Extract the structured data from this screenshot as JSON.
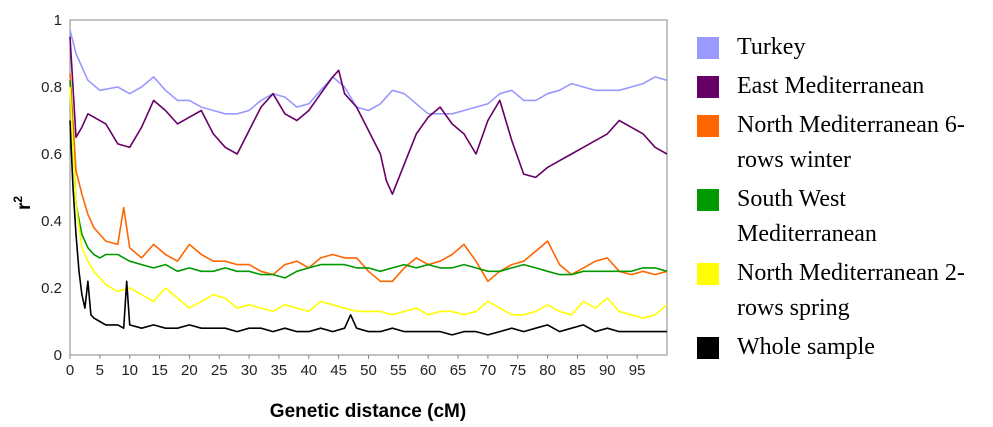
{
  "chart_data": {
    "type": "line",
    "title": "",
    "xlabel": "Genetic distance (cM)",
    "ylabel": "r²",
    "ylabel_main": "r",
    "ylabel_sup": "2",
    "xlim": [
      0,
      100
    ],
    "ylim": [
      0,
      1
    ],
    "xticks": [
      "0",
      "5",
      "10",
      "15",
      "20",
      "25",
      "30",
      "35",
      "40",
      "45",
      "50",
      "55",
      "60",
      "65",
      "70",
      "75",
      "80",
      "85",
      "90",
      "95"
    ],
    "yticks": [
      "0",
      "0.2",
      "0.4",
      "0.6",
      "0.8",
      "1"
    ],
    "grid": false,
    "legend_position": "right",
    "series": [
      {
        "name": "Turkey",
        "color": "#9999ff",
        "x": [
          0,
          1,
          2,
          3,
          5,
          8,
          10,
          12,
          14,
          16,
          18,
          20,
          22,
          24,
          26,
          28,
          30,
          32,
          34,
          36,
          38,
          40,
          42,
          44,
          46,
          48,
          50,
          52,
          54,
          56,
          58,
          60,
          62,
          64,
          66,
          68,
          70,
          72,
          74,
          76,
          78,
          80,
          82,
          84,
          86,
          88,
          90,
          92,
          94,
          96,
          98,
          100
        ],
        "y": [
          0.97,
          0.9,
          0.86,
          0.82,
          0.79,
          0.8,
          0.78,
          0.8,
          0.83,
          0.79,
          0.76,
          0.76,
          0.74,
          0.73,
          0.72,
          0.72,
          0.73,
          0.76,
          0.78,
          0.77,
          0.74,
          0.75,
          0.79,
          0.83,
          0.8,
          0.74,
          0.73,
          0.75,
          0.79,
          0.78,
          0.75,
          0.72,
          0.72,
          0.72,
          0.73,
          0.74,
          0.75,
          0.78,
          0.79,
          0.76,
          0.76,
          0.78,
          0.79,
          0.81,
          0.8,
          0.79,
          0.79,
          0.79,
          0.8,
          0.81,
          0.83,
          0.82
        ]
      },
      {
        "name": "East Mediterranean",
        "color": "#660066",
        "x": [
          0,
          1,
          2,
          3,
          4,
          6,
          8,
          10,
          12,
          14,
          16,
          18,
          20,
          22,
          24,
          26,
          28,
          30,
          32,
          34,
          36,
          38,
          40,
          42,
          44,
          45,
          46,
          48,
          50,
          52,
          53,
          54,
          56,
          58,
          60,
          62,
          64,
          66,
          68,
          70,
          72,
          74,
          76,
          78,
          80,
          82,
          84,
          86,
          88,
          90,
          92,
          94,
          96,
          98,
          100
        ],
        "y": [
          0.95,
          0.65,
          0.68,
          0.72,
          0.71,
          0.69,
          0.63,
          0.62,
          0.68,
          0.76,
          0.73,
          0.69,
          0.71,
          0.73,
          0.66,
          0.62,
          0.6,
          0.67,
          0.74,
          0.78,
          0.72,
          0.7,
          0.73,
          0.78,
          0.83,
          0.85,
          0.78,
          0.74,
          0.67,
          0.6,
          0.52,
          0.48,
          0.57,
          0.66,
          0.71,
          0.74,
          0.69,
          0.66,
          0.6,
          0.7,
          0.76,
          0.64,
          0.54,
          0.53,
          0.56,
          0.58,
          0.6,
          0.62,
          0.64,
          0.66,
          0.7,
          0.68,
          0.66,
          0.62,
          0.6
        ]
      },
      {
        "name": "North Mediterranean 6-rows winter",
        "color": "#ff6600",
        "x": [
          0,
          1,
          2,
          3,
          4,
          5,
          6,
          8,
          9,
          10,
          12,
          14,
          16,
          18,
          20,
          22,
          24,
          26,
          28,
          30,
          32,
          34,
          36,
          38,
          40,
          42,
          44,
          46,
          48,
          50,
          52,
          54,
          56,
          58,
          60,
          62,
          64,
          66,
          68,
          70,
          72,
          74,
          76,
          78,
          80,
          82,
          84,
          86,
          88,
          90,
          92,
          94,
          96,
          98,
          100
        ],
        "y": [
          0.84,
          0.55,
          0.48,
          0.42,
          0.38,
          0.36,
          0.34,
          0.33,
          0.44,
          0.32,
          0.29,
          0.33,
          0.3,
          0.28,
          0.33,
          0.3,
          0.28,
          0.28,
          0.27,
          0.27,
          0.25,
          0.24,
          0.27,
          0.28,
          0.26,
          0.29,
          0.3,
          0.29,
          0.29,
          0.25,
          0.22,
          0.22,
          0.26,
          0.29,
          0.27,
          0.28,
          0.3,
          0.33,
          0.28,
          0.22,
          0.25,
          0.27,
          0.28,
          0.31,
          0.34,
          0.27,
          0.24,
          0.26,
          0.28,
          0.29,
          0.25,
          0.24,
          0.25,
          0.24,
          0.25
        ]
      },
      {
        "name": "South West Mediterranean",
        "color": "#009900",
        "x": [
          0,
          1,
          2,
          3,
          4,
          5,
          6,
          8,
          10,
          12,
          14,
          16,
          18,
          20,
          22,
          24,
          26,
          28,
          30,
          32,
          34,
          36,
          38,
          40,
          42,
          44,
          46,
          48,
          50,
          52,
          54,
          56,
          58,
          60,
          62,
          64,
          66,
          68,
          70,
          72,
          74,
          76,
          78,
          80,
          82,
          84,
          86,
          88,
          90,
          92,
          94,
          96,
          98,
          100
        ],
        "y": [
          0.82,
          0.45,
          0.36,
          0.32,
          0.3,
          0.29,
          0.3,
          0.3,
          0.28,
          0.27,
          0.26,
          0.27,
          0.25,
          0.26,
          0.25,
          0.25,
          0.26,
          0.25,
          0.25,
          0.24,
          0.24,
          0.23,
          0.25,
          0.26,
          0.27,
          0.27,
          0.27,
          0.26,
          0.26,
          0.25,
          0.26,
          0.27,
          0.26,
          0.27,
          0.26,
          0.26,
          0.27,
          0.26,
          0.25,
          0.25,
          0.26,
          0.27,
          0.26,
          0.25,
          0.24,
          0.24,
          0.25,
          0.25,
          0.25,
          0.25,
          0.25,
          0.26,
          0.26,
          0.25
        ]
      },
      {
        "name": "North Mediterranean 2-rows spring",
        "color": "#ffff00",
        "x": [
          0,
          1,
          2,
          3,
          4,
          5,
          6,
          8,
          10,
          12,
          14,
          16,
          18,
          20,
          22,
          24,
          26,
          28,
          30,
          32,
          34,
          36,
          38,
          40,
          42,
          44,
          46,
          48,
          50,
          52,
          54,
          56,
          58,
          60,
          62,
          64,
          66,
          68,
          70,
          72,
          74,
          76,
          78,
          80,
          82,
          84,
          86,
          88,
          90,
          92,
          94,
          96,
          98,
          100
        ],
        "y": [
          0.8,
          0.45,
          0.32,
          0.28,
          0.25,
          0.23,
          0.21,
          0.19,
          0.2,
          0.18,
          0.16,
          0.2,
          0.17,
          0.14,
          0.16,
          0.18,
          0.17,
          0.14,
          0.15,
          0.14,
          0.13,
          0.15,
          0.14,
          0.13,
          0.16,
          0.15,
          0.14,
          0.13,
          0.13,
          0.13,
          0.12,
          0.13,
          0.14,
          0.12,
          0.13,
          0.13,
          0.12,
          0.13,
          0.16,
          0.14,
          0.12,
          0.12,
          0.13,
          0.15,
          0.13,
          0.12,
          0.16,
          0.14,
          0.17,
          0.13,
          0.12,
          0.11,
          0.12,
          0.15
        ]
      },
      {
        "name": "Whole sample",
        "color": "#000000",
        "x": [
          0,
          0.5,
          1,
          1.5,
          2,
          2.5,
          3,
          3.5,
          4,
          5,
          6,
          7,
          8,
          9,
          9.5,
          10,
          12,
          14,
          16,
          18,
          20,
          22,
          24,
          26,
          28,
          30,
          32,
          34,
          36,
          38,
          40,
          42,
          44,
          46,
          47,
          48,
          50,
          52,
          54,
          56,
          58,
          60,
          62,
          64,
          66,
          68,
          70,
          72,
          74,
          76,
          78,
          80,
          82,
          84,
          86,
          88,
          90,
          92,
          94,
          96,
          98,
          100
        ],
        "y": [
          0.7,
          0.5,
          0.36,
          0.25,
          0.18,
          0.14,
          0.22,
          0.12,
          0.11,
          0.1,
          0.09,
          0.09,
          0.09,
          0.08,
          0.22,
          0.09,
          0.08,
          0.09,
          0.08,
          0.08,
          0.09,
          0.08,
          0.08,
          0.08,
          0.07,
          0.08,
          0.08,
          0.07,
          0.08,
          0.07,
          0.07,
          0.08,
          0.07,
          0.08,
          0.12,
          0.08,
          0.07,
          0.07,
          0.08,
          0.07,
          0.07,
          0.07,
          0.07,
          0.06,
          0.07,
          0.07,
          0.06,
          0.07,
          0.08,
          0.07,
          0.08,
          0.09,
          0.07,
          0.08,
          0.09,
          0.07,
          0.08,
          0.07,
          0.07,
          0.07,
          0.07,
          0.07
        ]
      }
    ]
  },
  "legend": {
    "items": [
      {
        "label": "Turkey",
        "color": "#9999ff"
      },
      {
        "label": "East Mediterranean",
        "color": "#660066"
      },
      {
        "label": "North Mediterranean 6-rows winter",
        "color": "#ff6600"
      },
      {
        "label": "South West Mediterranean",
        "color": "#009900"
      },
      {
        "label": "North Mediterranean 2-rows spring",
        "color": "#ffff00"
      },
      {
        "label": "Whole sample",
        "color": "#000000"
      }
    ]
  }
}
